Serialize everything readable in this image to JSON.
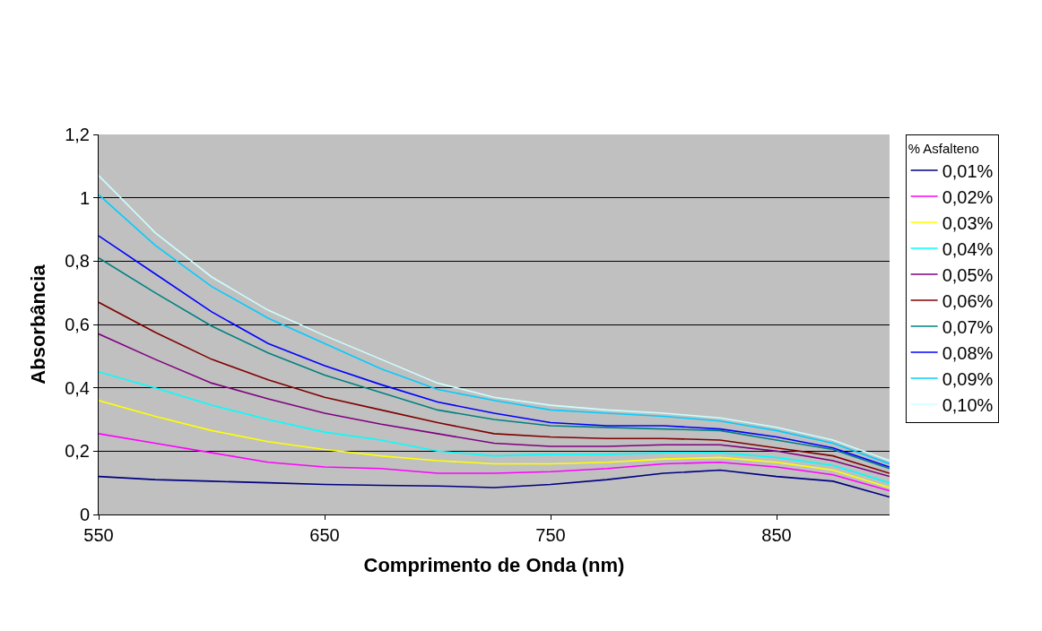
{
  "chart_data": {
    "type": "line",
    "xlabel": "Comprimento de Onda (nm)",
    "ylabel": "Absorbância",
    "legend_title": "% Asfalteno",
    "legend": "right",
    "grid": "y",
    "marker": "none",
    "line_style": "solid",
    "x": [
      550,
      575,
      600,
      625,
      650,
      675,
      700,
      725,
      750,
      775,
      800,
      825,
      850,
      875,
      900
    ],
    "xlim": [
      550,
      900
    ],
    "xticks": [
      550,
      650,
      750,
      850
    ],
    "ylim": [
      0,
      1.2
    ],
    "yticks": [
      0,
      {
        "value": 0.2,
        "label": "0,2"
      },
      {
        "value": 0.4,
        "label": "0,4"
      },
      {
        "value": 0.6,
        "label": "0,6"
      },
      {
        "value": 0.8,
        "label": "0,8"
      },
      1,
      {
        "value": 1.2,
        "label": "1,2"
      }
    ],
    "series": [
      {
        "name": "0,01%",
        "color": "#000080",
        "values": [
          0.12,
          0.11,
          0.105,
          0.1,
          0.095,
          0.092,
          0.09,
          0.085,
          0.095,
          0.11,
          0.13,
          0.14,
          0.12,
          0.105,
          0.055
        ]
      },
      {
        "name": "0,02%",
        "color": "#ff00ff",
        "values": [
          0.255,
          0.225,
          0.195,
          0.165,
          0.15,
          0.145,
          0.13,
          0.13,
          0.135,
          0.145,
          0.16,
          0.165,
          0.15,
          0.125,
          0.075
        ]
      },
      {
        "name": "0,03%",
        "color": "#ffff00",
        "values": [
          0.36,
          0.31,
          0.265,
          0.23,
          0.205,
          0.185,
          0.17,
          0.16,
          0.16,
          0.165,
          0.175,
          0.18,
          0.165,
          0.14,
          0.085
        ]
      },
      {
        "name": "0,04%",
        "color": "#00ffff",
        "values": [
          0.45,
          0.4,
          0.345,
          0.3,
          0.26,
          0.235,
          0.2,
          0.185,
          0.19,
          0.19,
          0.195,
          0.195,
          0.18,
          0.155,
          0.1
        ]
      },
      {
        "name": "0,05%",
        "color": "#800080",
        "values": [
          0.57,
          0.49,
          0.415,
          0.365,
          0.32,
          0.285,
          0.255,
          0.225,
          0.215,
          0.215,
          0.22,
          0.22,
          0.2,
          0.17,
          0.12
        ]
      },
      {
        "name": "0,06%",
        "color": "#800000",
        "values": [
          0.67,
          0.575,
          0.49,
          0.425,
          0.37,
          0.33,
          0.29,
          0.255,
          0.245,
          0.24,
          0.24,
          0.235,
          0.21,
          0.185,
          0.13
        ]
      },
      {
        "name": "0,07%",
        "color": "#008080",
        "values": [
          0.81,
          0.7,
          0.595,
          0.51,
          0.44,
          0.385,
          0.33,
          0.3,
          0.28,
          0.275,
          0.27,
          0.265,
          0.235,
          0.205,
          0.145
        ]
      },
      {
        "name": "0,08%",
        "color": "#0000ff",
        "values": [
          0.88,
          0.76,
          0.64,
          0.54,
          0.47,
          0.41,
          0.355,
          0.32,
          0.29,
          0.28,
          0.28,
          0.27,
          0.245,
          0.21,
          0.15
        ]
      },
      {
        "name": "0,09%",
        "color": "#00ccff",
        "values": [
          1.01,
          0.85,
          0.72,
          0.62,
          0.54,
          0.46,
          0.395,
          0.36,
          0.33,
          0.32,
          0.31,
          0.295,
          0.265,
          0.225,
          0.16
        ]
      },
      {
        "name": "0,10%",
        "color": "#ccffff",
        "values": [
          1.07,
          0.89,
          0.75,
          0.645,
          0.565,
          0.49,
          0.415,
          0.37,
          0.345,
          0.33,
          0.32,
          0.305,
          0.275,
          0.235,
          0.17
        ]
      }
    ]
  }
}
